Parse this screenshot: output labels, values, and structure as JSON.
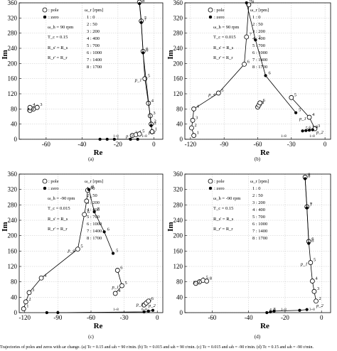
{
  "caption": "Trajectories of poles and zeros with ωr change. (a) Tc = 0.15 and ωh = 90 r/min. (b) Tc = 0.015 and ωh = 90 r/min. (c) Tc = 0.015 and ωh = -90 r/min. (d) Tc = 0.15 and ωh = -90 r/min.",
  "legend": {
    "pole": ": pole",
    "zero": ": zero",
    "omega_r": "ω_r [rpm]",
    "speed_entries": [
      "1 : 0",
      "2 : 50",
      "3 : 200",
      "4 : 400",
      "5 : 700",
      "6 : 1000",
      "7 : 1400",
      "8 : 1700"
    ]
  },
  "chart_data": [
    {
      "type": "scatter",
      "panel_label": "(a)",
      "xlabel": "Re",
      "ylabel": "Im",
      "xlim": [
        -75,
        5
      ],
      "ylim": [
        0,
        360
      ],
      "xticks": [
        -60,
        -40,
        -20,
        0
      ],
      "yticks": [
        0,
        40,
        80,
        120,
        160,
        200,
        240,
        280,
        320,
        360
      ],
      "params": [
        "ω_h = 90 rpm",
        "T_c = 0.15",
        "R_s' = R_s",
        "R_r' = R_r"
      ],
      "curve_labels": [
        "p_1",
        "p_2",
        "p_3",
        "p_4"
      ],
      "annotations": [
        "1~8",
        "1~8"
      ],
      "series": [
        {
          "name": "p_1",
          "kind": "pole",
          "labels": [
            "1",
            "2",
            "3",
            "4",
            "5",
            "6",
            "7",
            "8"
          ],
          "points": [
            [
              -1,
              20
            ],
            [
              -1.5,
              40
            ],
            [
              -2,
              62
            ],
            [
              -3,
              95
            ],
            [
              -5,
              160
            ],
            [
              -6,
              232
            ],
            [
              -7,
              312
            ],
            [
              -8,
              362
            ]
          ]
        },
        {
          "name": "p_4",
          "kind": "pole",
          "labels": [
            "1",
            "2",
            "3",
            "4"
          ],
          "points": [
            [
              -69,
              76
            ],
            [
              -67,
              80
            ],
            [
              -65,
              84
            ],
            [
              -69,
              84
            ]
          ]
        },
        {
          "name": "p_3",
          "kind": "pole",
          "labels": [
            "3",
            "4",
            "5"
          ],
          "points": [
            [
              -12,
              10
            ],
            [
              -10,
              12
            ],
            [
              -8,
              14
            ]
          ]
        },
        {
          "name": "zeros",
          "kind": "zero",
          "labels": [
            "2",
            "6",
            "7",
            "8"
          ],
          "points": [
            [
              -1.5,
              36
            ],
            [
              -6,
              228
            ],
            [
              -7,
              308
            ],
            [
              -8,
              358
            ]
          ]
        },
        {
          "name": "zeros-axis",
          "kind": "zero",
          "labels": [],
          "points": [
            [
              -30,
              0
            ],
            [
              -26,
              0
            ],
            [
              -22,
              0
            ],
            [
              -13,
              0
            ],
            [
              -9,
              0
            ]
          ]
        }
      ]
    },
    {
      "type": "scatter",
      "panel_label": "(b)",
      "xlabel": "Re",
      "ylabel": "Im",
      "xlim": [
        -125,
        5
      ],
      "ylim": [
        0,
        360
      ],
      "xticks": [
        -120,
        -90,
        -60,
        -30,
        0
      ],
      "yticks": [
        0,
        40,
        80,
        120,
        160,
        200,
        240,
        280,
        320,
        360
      ],
      "params": [
        "ω_h = 90 rpm",
        "T_c = 0.015",
        "R_s' = R_s",
        "R_r' = R_r"
      ],
      "curve_labels": [
        "p_1",
        "p_2",
        "p_4"
      ],
      "annotations": [
        "1~8",
        "1~8"
      ],
      "series": [
        {
          "name": "p_4",
          "kind": "pole",
          "labels": [
            "1",
            "2",
            "3",
            "4",
            "5",
            "6",
            "7",
            "8"
          ],
          "points": [
            [
              -117,
              10
            ],
            [
              -119,
              30
            ],
            [
              -118,
              50
            ],
            [
              -117,
              80
            ],
            [
              -95,
              122
            ],
            [
              -72,
              198
            ],
            [
              -70,
              270
            ],
            [
              -68,
              355
            ]
          ]
        },
        {
          "name": "p_1",
          "kind": "pole",
          "labels": [
            "3",
            "4",
            "5"
          ],
          "points": [
            [
              -9,
              28
            ],
            [
              -14,
              58
            ],
            [
              -30,
              110
            ]
          ]
        },
        {
          "name": "p_3",
          "kind": "pole",
          "labels": [
            "7",
            "8",
            "6"
          ],
          "points": [
            [
              -60,
              85
            ],
            [
              -59,
              90
            ],
            [
              -58,
              96
            ]
          ]
        },
        {
          "name": "zeros",
          "kind": "zero",
          "labels": [
            "8",
            "7",
            "6",
            "5"
          ],
          "points": [
            [
              -70,
              360
            ],
            [
              -62,
              262
            ],
            [
              -53,
              168
            ],
            [
              -26,
              70
            ]
          ]
        },
        {
          "name": "zeros-axis",
          "kind": "zero",
          "labels": [
            "5",
            "6",
            "7",
            "8"
          ],
          "points": [
            [
              -20,
              22
            ],
            [
              -17,
              23
            ],
            [
              -14,
              24
            ],
            [
              -11,
              25
            ]
          ]
        }
      ]
    },
    {
      "type": "scatter",
      "panel_label": "(c)",
      "xlabel": "Re",
      "ylabel": "Im",
      "xlim": [
        -125,
        5
      ],
      "ylim": [
        0,
        360
      ],
      "xticks": [
        -120,
        -90,
        -60,
        -30,
        0
      ],
      "yticks": [
        0,
        40,
        80,
        120,
        160,
        200,
        240,
        280,
        320,
        360
      ],
      "params": [
        "ω_h = -90 rpm",
        "T_c = 0.015",
        "R_s' = R_s",
        "R_r' = R_r"
      ],
      "curve_labels": [
        "p_1",
        "p_2",
        "p_3",
        "p_4"
      ],
      "annotations": [
        "1~8",
        "6~8"
      ],
      "series": [
        {
          "name": "p_4",
          "kind": "pole",
          "labels": [
            "1",
            "2",
            "3",
            "4",
            "5",
            "6",
            "7",
            "8"
          ],
          "points": [
            [
              -121,
              10
            ],
            [
              -119,
              28
            ],
            [
              -116,
              52
            ],
            [
              -105,
              90
            ],
            [
              -72,
              165
            ],
            [
              -66,
              255
            ],
            [
              -64,
              290
            ],
            [
              -63,
              318
            ]
          ]
        },
        {
          "name": "p_1",
          "kind": "pole",
          "labels": [
            "4",
            "5",
            "6"
          ],
          "points": [
            [
              -38,
              50
            ],
            [
              -32,
              70
            ],
            [
              -36,
              110
            ]
          ]
        },
        {
          "name": "p_3",
          "kind": "pole",
          "labels": [
            "4",
            "5",
            "6"
          ],
          "points": [
            [
              -12,
              20
            ],
            [
              -10,
              25
            ],
            [
              -8,
              30
            ]
          ]
        },
        {
          "name": "zeros",
          "kind": "zero",
          "labels": [
            "8",
            "7",
            "6",
            "5"
          ],
          "points": [
            [
              -62,
              320
            ],
            [
              -57,
              262
            ],
            [
              -48,
              210
            ],
            [
              -40,
              154
            ]
          ]
        },
        {
          "name": "zeros-axis",
          "kind": "zero",
          "labels": [],
          "points": [
            [
              -100,
              0
            ],
            [
              -90,
              0
            ],
            [
              -12,
              2
            ],
            [
              -8,
              4
            ],
            [
              -4,
              6
            ]
          ]
        }
      ]
    },
    {
      "type": "scatter",
      "panel_label": "(d)",
      "xlabel": "Re",
      "ylabel": "Im",
      "xlim": [
        -75,
        5
      ],
      "ylim": [
        0,
        360
      ],
      "xticks": [
        -60,
        -40,
        -20,
        0
      ],
      "yticks": [
        0,
        40,
        80,
        120,
        160,
        200,
        240,
        280,
        320,
        360
      ],
      "params": [
        "ω_h = -90 rpm",
        "T_c = 0.15",
        "R_s' = R_s",
        "R_r' = R_r"
      ],
      "curve_labels": [
        "p_1",
        "p_2",
        "p_4"
      ],
      "annotations": [
        "1~8",
        "3~8"
      ],
      "series": [
        {
          "name": "p_1",
          "kind": "pole",
          "labels": [
            "2",
            "3",
            "4",
            "5",
            "6",
            "7",
            "8"
          ],
          "points": [
            [
              -3,
              30
            ],
            [
              -4,
              55
            ],
            [
              -5,
              82
            ],
            [
              -6,
              130
            ],
            [
              -7,
              185
            ],
            [
              -8,
              275
            ],
            [
              -9,
              352
            ]
          ]
        },
        {
          "name": "p_4",
          "kind": "pole",
          "labels": [
            "1",
            "3",
            "5",
            "8"
          ],
          "points": [
            [
              -69,
              76
            ],
            [
              -67,
              80
            ],
            [
              -65,
              84
            ],
            [
              -63,
              82
            ]
          ]
        },
        {
          "name": "zeros",
          "kind": "zero",
          "labels": [
            "8",
            "7",
            "6"
          ],
          "points": [
            [
              -9,
              348
            ],
            [
              -8,
              272
            ],
            [
              -7,
              180
            ]
          ]
        },
        {
          "name": "zeros-axis",
          "kind": "zero",
          "labels": [
            "6",
            "8"
          ],
          "points": [
            [
              -30,
              0
            ],
            [
              -28,
              2
            ],
            [
              -26,
              4
            ],
            [
              -12,
              6
            ],
            [
              -8,
              8
            ]
          ]
        }
      ]
    }
  ]
}
